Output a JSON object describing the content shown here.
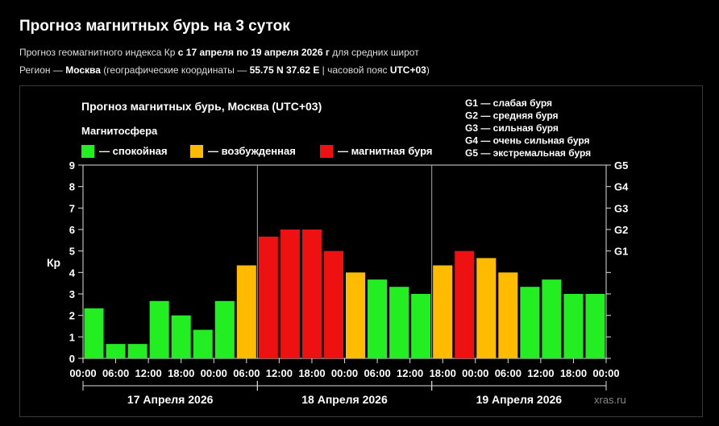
{
  "header": {
    "title": "Прогноз магнитных бурь на 3 суток",
    "line1_prefix": "Прогноз геомагнитного индекса Кр ",
    "line1_bold": "с 17 апреля по 19 апреля 2026 г",
    "line1_suffix": " для средних широт",
    "line2_prefix": "Регион — ",
    "line2_city": "Москва",
    "line2_mid": " (географические координаты — ",
    "line2_coords": "55.75 N 37.62 E",
    "line2_mid2": " | часовой пояс ",
    "line2_tz": "UTC+03",
    "line2_suffix": ")"
  },
  "chart_data": {
    "type": "bar",
    "title": "Прогноз магнитных бурь, Москва (UTC+03)",
    "legend_title": "Магнитосфера",
    "legend": [
      {
        "label": "— спокойная",
        "color": "#22ee22"
      },
      {
        "label": "— возбужденная",
        "color": "#ffbb00"
      },
      {
        "label": "— магнитная буря",
        "color": "#ee1111"
      }
    ],
    "g_scale": [
      "G1 — слабая буря",
      "G2 — средняя буря",
      "G3 — сильная буря",
      "G4 — очень сильная буря",
      "G5 — экстремальная буря"
    ],
    "ylabel": "Кр",
    "ylim": [
      0,
      9
    ],
    "y_ticks": [
      "0",
      "1",
      "2",
      "3",
      "4",
      "5",
      "6",
      "7",
      "8",
      "9"
    ],
    "right_ticks": [
      {
        "label": "G1",
        "value": 5
      },
      {
        "label": "G2",
        "value": 6
      },
      {
        "label": "G3",
        "value": 7
      },
      {
        "label": "G4",
        "value": 8
      },
      {
        "label": "G5",
        "value": 9
      }
    ],
    "x_tick_labels": [
      "00:00",
      "06:00",
      "12:00",
      "18:00",
      "00:00",
      "06:00",
      "12:00",
      "18:00",
      "00:00",
      "06:00",
      "12:00",
      "18:00",
      "00:00",
      "06:00",
      "12:00",
      "18:00",
      "00:00"
    ],
    "days": [
      "17 Апреля 2026",
      "18 Апреля 2026",
      "19 Апреля 2026"
    ],
    "values": [
      2.33,
      0.67,
      0.67,
      2.67,
      2.0,
      1.33,
      2.67,
      4.33,
      5.67,
      6.0,
      6.0,
      5.0,
      4.0,
      3.67,
      3.33,
      3.0,
      4.33,
      5.0,
      4.67,
      4.0,
      3.33,
      3.67,
      3.0,
      3.0
    ],
    "levels": [
      "quiet",
      "quiet",
      "quiet",
      "quiet",
      "quiet",
      "quiet",
      "quiet",
      "active",
      "storm",
      "storm",
      "storm",
      "storm",
      "active",
      "quiet",
      "quiet",
      "quiet",
      "active",
      "storm",
      "active",
      "active",
      "quiet",
      "quiet",
      "quiet",
      "quiet"
    ],
    "level_colors": {
      "quiet": "#22ee22",
      "active": "#ffbb00",
      "storm": "#ee1111"
    },
    "watermark": "xras.ru"
  }
}
